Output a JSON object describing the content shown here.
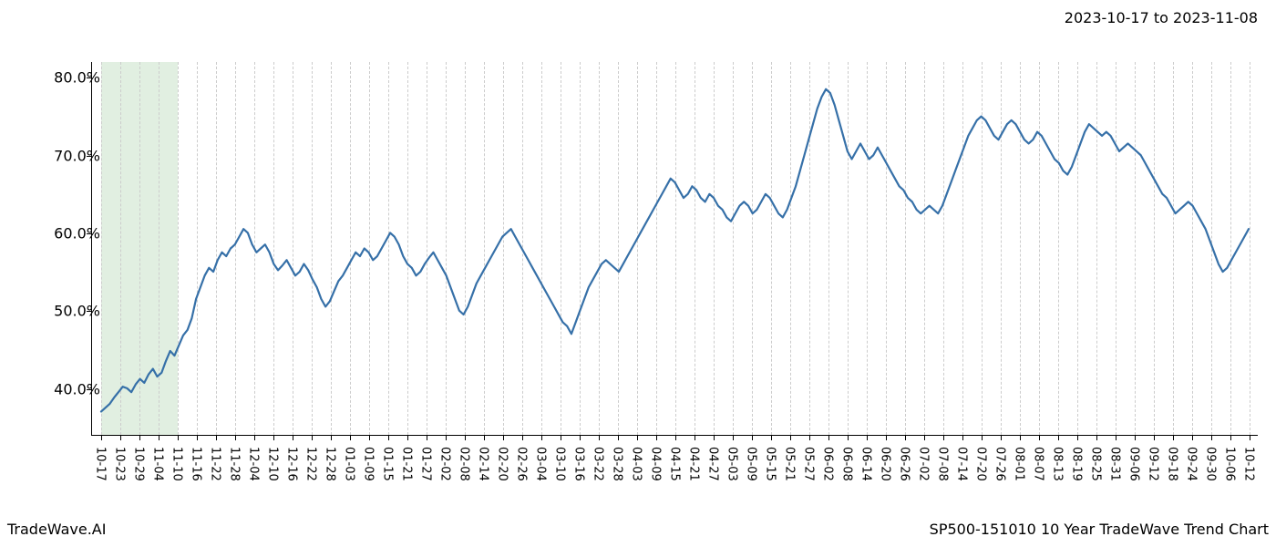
{
  "header": {
    "date_range": "2023-10-17 to 2023-11-08"
  },
  "footer": {
    "brand": "TradeWave.AI",
    "chart_title": "SP500-151010 10 Year TradeWave Trend Chart"
  },
  "chart": {
    "type": "line",
    "background_color": "#ffffff",
    "line_color": "#3670a8",
    "line_width": 2.2,
    "grid_color": "#cccccc",
    "grid_dash": "3,3",
    "axis_color": "#000000",
    "highlight_band": {
      "color": "#d4e8d4",
      "opacity": 0.7,
      "x_start_index": 0,
      "x_end_index": 4
    },
    "y_axis": {
      "min": 34,
      "max": 82,
      "ticks": [
        40,
        50,
        60,
        70,
        80
      ],
      "tick_labels": [
        "40.0%",
        "50.0%",
        "60.0%",
        "70.0%",
        "80.0%"
      ],
      "label_fontsize": 16
    },
    "x_axis": {
      "tick_labels": [
        "10-17",
        "10-23",
        "10-29",
        "11-04",
        "11-10",
        "11-16",
        "11-22",
        "11-28",
        "12-04",
        "12-10",
        "12-16",
        "12-22",
        "12-28",
        "01-03",
        "01-09",
        "01-15",
        "01-21",
        "01-27",
        "02-02",
        "02-08",
        "02-14",
        "02-20",
        "02-26",
        "03-04",
        "03-10",
        "03-16",
        "03-22",
        "03-28",
        "04-03",
        "04-09",
        "04-15",
        "04-21",
        "04-27",
        "05-03",
        "05-09",
        "05-15",
        "05-21",
        "05-27",
        "06-02",
        "06-08",
        "06-14",
        "06-20",
        "06-26",
        "07-02",
        "07-08",
        "07-14",
        "07-20",
        "07-26",
        "08-01",
        "08-07",
        "08-13",
        "08-19",
        "08-25",
        "08-31",
        "09-06",
        "09-12",
        "09-18",
        "09-24",
        "09-30",
        "10-06",
        "10-12"
      ],
      "label_fontsize": 13,
      "rotation": 90
    },
    "series": {
      "name": "trend",
      "values": [
        37.0,
        37.5,
        38.0,
        38.8,
        39.5,
        40.2,
        40.0,
        39.5,
        40.5,
        41.2,
        40.7,
        41.8,
        42.5,
        41.5,
        42.0,
        43.5,
        44.8,
        44.2,
        45.5,
        46.8,
        47.5,
        49.0,
        51.5,
        53.0,
        54.5,
        55.5,
        55.0,
        56.5,
        57.5,
        57.0,
        58.0,
        58.5,
        59.5,
        60.5,
        60.0,
        58.5,
        57.5,
        58.0,
        58.5,
        57.5,
        56.0,
        55.2,
        55.8,
        56.5,
        55.5,
        54.5,
        55.0,
        56.0,
        55.2,
        54.0,
        53.0,
        51.5,
        50.5,
        51.2,
        52.5,
        53.8,
        54.5,
        55.5,
        56.5,
        57.5,
        57.0,
        58.0,
        57.5,
        56.5,
        57.0,
        58.0,
        59.0,
        60.0,
        59.5,
        58.5,
        57.0,
        56.0,
        55.5,
        54.5,
        55.0,
        56.0,
        56.8,
        57.5,
        56.5,
        55.5,
        54.5,
        53.0,
        51.5,
        50.0,
        49.5,
        50.5,
        52.0,
        53.5,
        54.5,
        55.5,
        56.5,
        57.5,
        58.5,
        59.5,
        60.0,
        60.5,
        59.5,
        58.5,
        57.5,
        56.5,
        55.5,
        54.5,
        53.5,
        52.5,
        51.5,
        50.5,
        49.5,
        48.5,
        48.0,
        47.0,
        48.5,
        50.0,
        51.5,
        53.0,
        54.0,
        55.0,
        56.0,
        56.5,
        56.0,
        55.5,
        55.0,
        56.0,
        57.0,
        58.0,
        59.0,
        60.0,
        61.0,
        62.0,
        63.0,
        64.0,
        65.0,
        66.0,
        67.0,
        66.5,
        65.5,
        64.5,
        65.0,
        66.0,
        65.5,
        64.5,
        64.0,
        65.0,
        64.5,
        63.5,
        63.0,
        62.0,
        61.5,
        62.5,
        63.5,
        64.0,
        63.5,
        62.5,
        63.0,
        64.0,
        65.0,
        64.5,
        63.5,
        62.5,
        62.0,
        63.0,
        64.5,
        66.0,
        68.0,
        70.0,
        72.0,
        74.0,
        76.0,
        77.5,
        78.5,
        78.0,
        76.5,
        74.5,
        72.5,
        70.5,
        69.5,
        70.5,
        71.5,
        70.5,
        69.5,
        70.0,
        71.0,
        70.0,
        69.0,
        68.0,
        67.0,
        66.0,
        65.5,
        64.5,
        64.0,
        63.0,
        62.5,
        63.0,
        63.5,
        63.0,
        62.5,
        63.5,
        65.0,
        66.5,
        68.0,
        69.5,
        71.0,
        72.5,
        73.5,
        74.5,
        75.0,
        74.5,
        73.5,
        72.5,
        72.0,
        73.0,
        74.0,
        74.5,
        74.0,
        73.0,
        72.0,
        71.5,
        72.0,
        73.0,
        72.5,
        71.5,
        70.5,
        69.5,
        69.0,
        68.0,
        67.5,
        68.5,
        70.0,
        71.5,
        73.0,
        74.0,
        73.5,
        73.0,
        72.5,
        73.0,
        72.5,
        71.5,
        70.5,
        71.0,
        71.5,
        71.0,
        70.5,
        70.0,
        69.0,
        68.0,
        67.0,
        66.0,
        65.0,
        64.5,
        63.5,
        62.5,
        63.0,
        63.5,
        64.0,
        63.5,
        62.5,
        61.5,
        60.5,
        59.0,
        57.5,
        56.0,
        55.0,
        55.5,
        56.5,
        57.5,
        58.5,
        59.5,
        60.5
      ]
    }
  }
}
